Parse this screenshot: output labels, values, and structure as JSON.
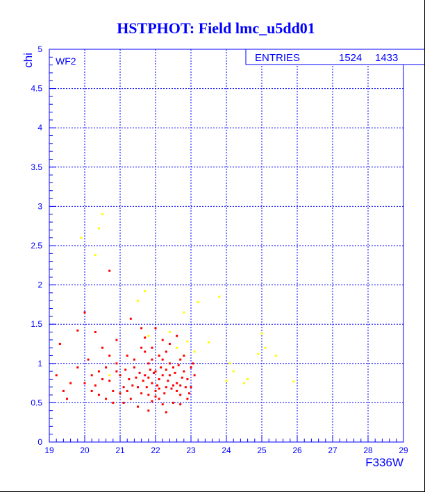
{
  "chart_data": {
    "type": "scatter",
    "title": "HSTPHOT: Field lmc_u5dd01",
    "xlabel": "F336W",
    "ylabel": "chi",
    "xlim": [
      19,
      29
    ],
    "ylim": [
      0,
      5
    ],
    "xticks": [
      "19",
      "20",
      "21",
      "22",
      "23",
      "24",
      "25",
      "26",
      "27",
      "28",
      "29"
    ],
    "yticks": [
      "0",
      "0.5",
      "1",
      "1.5",
      "2",
      "2.5",
      "3",
      "3.5",
      "4",
      "4.5",
      "5"
    ],
    "grid": true,
    "panel_label": "WF2",
    "stats": {
      "label": "ENTRIES",
      "values": [
        "1524",
        "1433"
      ]
    },
    "colors": {
      "axes": "#0000ff",
      "main": "#ff0000",
      "secondary": "#ffff00"
    },
    "series": [
      {
        "color": "#ff0000",
        "points": [
          [
            19.3,
            1.25
          ],
          [
            19.2,
            0.85
          ],
          [
            19.4,
            0.65
          ],
          [
            19.6,
            0.75
          ],
          [
            19.5,
            0.55
          ],
          [
            19.8,
            1.42
          ],
          [
            19.8,
            0.95
          ],
          [
            20.0,
            1.65
          ],
          [
            20.3,
            1.4
          ],
          [
            20.7,
            2.18
          ],
          [
            20.6,
            0.95
          ],
          [
            20.4,
            0.6
          ],
          [
            20.2,
            0.85
          ],
          [
            20.8,
            0.5
          ],
          [
            21.1,
            0.7
          ],
          [
            21.3,
            1.57
          ],
          [
            20.9,
            1.3
          ],
          [
            21.6,
            1.45
          ],
          [
            20.1,
            1.05
          ],
          [
            20.5,
            1.2
          ],
          [
            20.3,
            0.72
          ],
          [
            20.7,
            0.78
          ],
          [
            20.9,
            0.9
          ],
          [
            21.0,
            0.62
          ],
          [
            21.2,
            1.1
          ],
          [
            21.4,
            0.95
          ],
          [
            21.5,
            0.7
          ],
          [
            21.3,
            0.55
          ],
          [
            21.6,
            1.2
          ],
          [
            21.7,
            0.85
          ],
          [
            21.8,
            1.0
          ],
          [
            21.9,
            0.75
          ],
          [
            21.8,
            0.6
          ],
          [
            22.0,
            0.9
          ],
          [
            22.1,
            0.8
          ],
          [
            22.0,
            0.65
          ],
          [
            22.2,
            1.05
          ],
          [
            22.3,
            0.7
          ],
          [
            22.1,
            0.55
          ],
          [
            22.4,
            0.85
          ],
          [
            22.5,
            0.95
          ],
          [
            22.3,
            1.15
          ],
          [
            22.6,
            0.75
          ],
          [
            22.7,
            0.6
          ],
          [
            22.5,
            0.5
          ],
          [
            22.8,
            0.9
          ],
          [
            22.9,
            0.8
          ],
          [
            22.7,
            1.05
          ],
          [
            23.0,
            0.7
          ],
          [
            23.1,
            0.85
          ],
          [
            21.9,
            1.2
          ],
          [
            22.2,
            1.3
          ],
          [
            22.0,
            1.45
          ],
          [
            21.7,
            1.33
          ],
          [
            22.4,
            1.25
          ],
          [
            22.6,
            1.35
          ],
          [
            21.5,
            0.45
          ],
          [
            21.8,
            0.4
          ],
          [
            22.3,
            0.38
          ],
          [
            22.7,
            0.48
          ],
          [
            21.95,
            0.88
          ],
          [
            22.05,
            0.72
          ],
          [
            22.15,
            0.95
          ],
          [
            22.25,
            0.62
          ],
          [
            21.85,
            0.92
          ],
          [
            21.75,
            0.7
          ],
          [
            22.35,
            0.78
          ],
          [
            22.45,
            0.68
          ],
          [
            22.55,
            0.88
          ],
          [
            22.65,
            0.98
          ],
          [
            21.65,
            0.78
          ],
          [
            21.55,
            0.88
          ],
          [
            21.45,
            0.82
          ],
          [
            21.35,
            0.72
          ],
          [
            21.25,
            0.8
          ],
          [
            21.15,
            0.92
          ],
          [
            22.85,
            0.7
          ],
          [
            22.95,
            0.62
          ],
          [
            23.05,
            1.0
          ],
          [
            22.75,
            0.82
          ],
          [
            20.8,
            0.65
          ],
          [
            20.6,
            0.55
          ],
          [
            20.4,
            0.9
          ],
          [
            20.2,
            0.65
          ],
          [
            20.0,
            0.75
          ],
          [
            20.9,
            1.0
          ],
          [
            21.1,
            0.5
          ],
          [
            20.5,
            0.8
          ],
          [
            20.7,
            1.1
          ],
          [
            21.0,
            0.85
          ],
          [
            22.1,
            1.1
          ],
          [
            21.9,
            1.05
          ],
          [
            22.2,
            0.85
          ],
          [
            22.4,
            1.0
          ],
          [
            22.0,
            0.58
          ],
          [
            21.8,
            0.82
          ],
          [
            22.6,
            0.65
          ],
          [
            22.8,
            1.1
          ],
          [
            23.0,
            0.95
          ],
          [
            22.5,
            0.72
          ],
          [
            21.6,
            0.62
          ],
          [
            21.4,
            1.05
          ],
          [
            21.2,
            0.65
          ],
          [
            21.7,
            1.15
          ],
          [
            22.3,
            0.92
          ],
          [
            22.7,
            0.72
          ],
          [
            22.9,
            0.55
          ],
          [
            22.2,
            0.48
          ],
          [
            21.9,
            0.52
          ],
          [
            22.1,
            0.68
          ]
        ]
      },
      {
        "color": "#ffff00",
        "points": [
          [
            19.9,
            2.6
          ],
          [
            20.3,
            2.38
          ],
          [
            20.4,
            2.72
          ],
          [
            20.5,
            2.9
          ],
          [
            21.7,
            1.92
          ],
          [
            21.5,
            1.8
          ],
          [
            22.8,
            1.65
          ],
          [
            23.2,
            1.78
          ],
          [
            23.8,
            1.85
          ],
          [
            23.5,
            1.27
          ],
          [
            24.1,
            1.0
          ],
          [
            24.2,
            0.9
          ],
          [
            24.6,
            0.8
          ],
          [
            24.5,
            0.75
          ],
          [
            24.9,
            1.12
          ],
          [
            25.0,
            1.38
          ],
          [
            25.1,
            1.2
          ],
          [
            25.4,
            1.1
          ],
          [
            25.9,
            0.77
          ],
          [
            24.0,
            0.78
          ],
          [
            23.1,
            1.15
          ],
          [
            22.9,
            1.28
          ],
          [
            20.7,
            0.85
          ],
          [
            22.6,
            1.2
          ],
          [
            21.8,
            1.35
          ],
          [
            22.4,
            1.4
          ]
        ]
      }
    ]
  }
}
